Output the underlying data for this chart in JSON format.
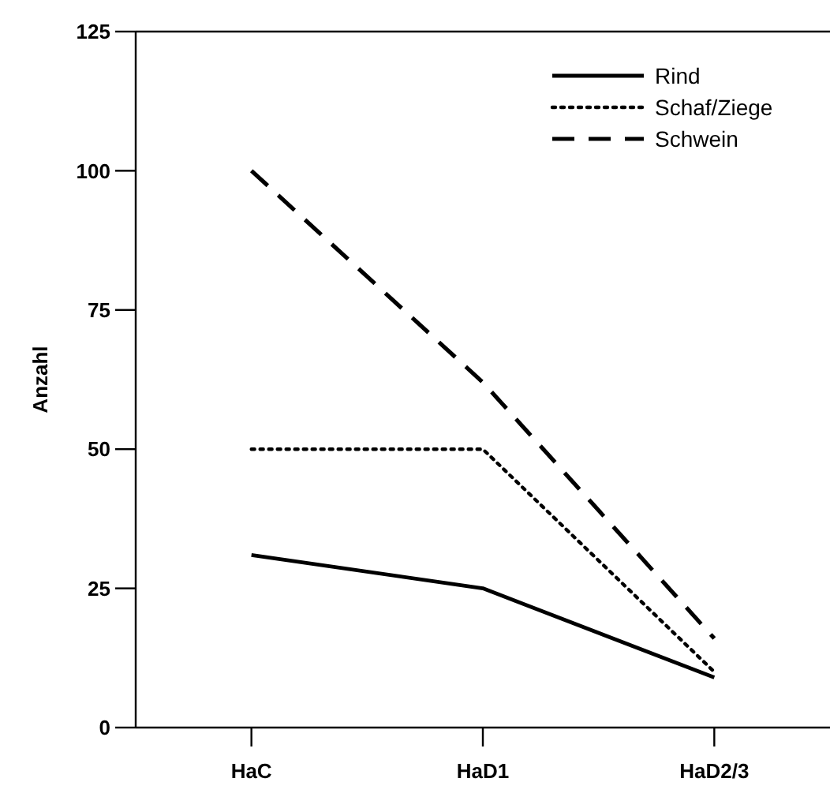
{
  "chart_data": {
    "type": "line",
    "ylabel": "Anzahl",
    "categories": [
      "HaC",
      "HaD1",
      "HaD2/3"
    ],
    "ylim": [
      0,
      125
    ],
    "yticks": [
      0,
      25,
      50,
      75,
      100,
      125
    ],
    "grid": false,
    "legend": "top right",
    "marker": "none",
    "series": [
      {
        "name": "Rind",
        "color": "#000000",
        "line_style": "solid",
        "values": [
          31,
          25,
          9
        ]
      },
      {
        "name": "Schaf/Ziege",
        "color": "#000000",
        "line_style": "dotted",
        "values": [
          50,
          50,
          10
        ]
      },
      {
        "name": "Schwein",
        "color": "#000000",
        "line_style": "dashed",
        "values": [
          100,
          62,
          16
        ]
      }
    ]
  }
}
